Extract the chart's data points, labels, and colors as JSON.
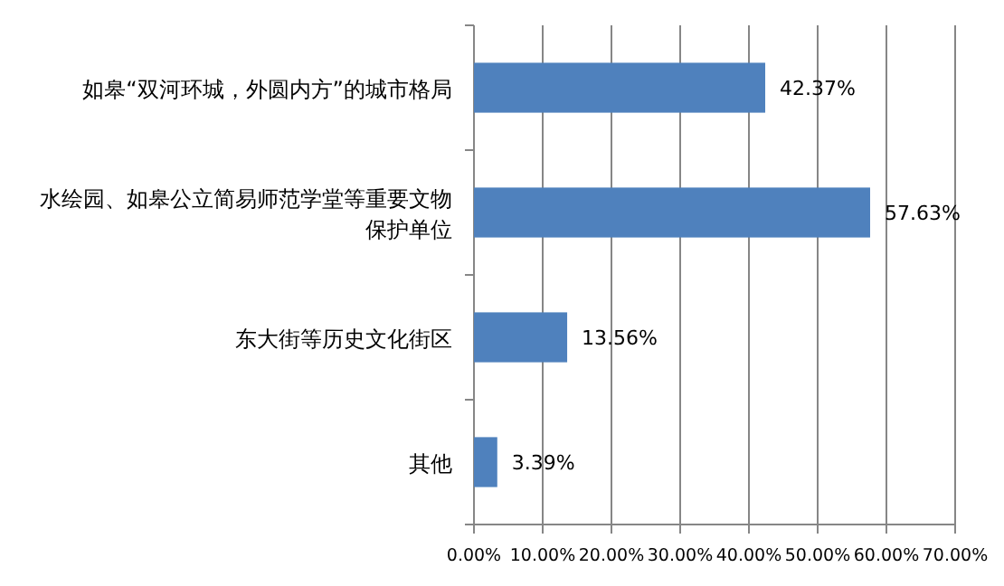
{
  "chart_data": {
    "type": "bar",
    "orientation": "horizontal",
    "categories": [
      "如皋“双河环城，外圆内方”的城市格局",
      "水绘园、如皋公立简易师范学堂等重要文物保护单位",
      "东大街等历史文化街区",
      "其他"
    ],
    "values": [
      42.37,
      57.63,
      13.56,
      3.39
    ],
    "value_labels": [
      "42.37%",
      "57.63%",
      "13.56%",
      "3.39%"
    ],
    "color": "#4f81bd",
    "xlim": [
      0,
      70
    ],
    "xticks": [
      {
        "value": 0,
        "label": "0.00%"
      },
      {
        "value": 10,
        "label": "10.00%"
      },
      {
        "value": 20,
        "label": "20.00%"
      },
      {
        "value": 30,
        "label": "30.00%"
      },
      {
        "value": 40,
        "label": "40.00%"
      },
      {
        "value": 50,
        "label": "50.00%"
      },
      {
        "value": 60,
        "label": "60.00%"
      },
      {
        "value": 70,
        "label": "70.00%"
      }
    ],
    "grid": "x"
  }
}
